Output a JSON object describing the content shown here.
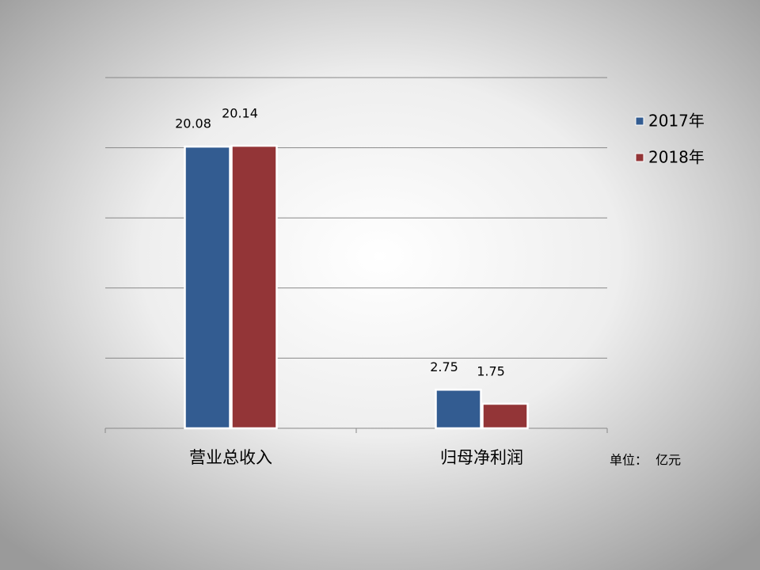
{
  "chart_data": {
    "type": "bar",
    "categories": [
      "营业总收入",
      "归母净利润"
    ],
    "series": [
      {
        "name": "2017年",
        "color": "#335c91",
        "values": [
          20.08,
          2.75
        ]
      },
      {
        "name": "2018年",
        "color": "#933537",
        "values": [
          20.14,
          1.75
        ]
      }
    ],
    "ylim": [
      0,
      25
    ],
    "yticks": [
      0,
      5,
      10,
      15,
      20,
      25
    ],
    "grid": true,
    "legend": "right",
    "unit_note": "单位：  亿元"
  }
}
